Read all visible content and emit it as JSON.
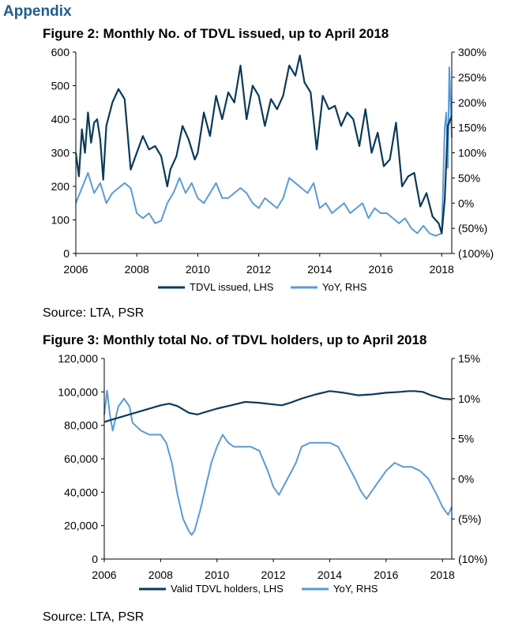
{
  "heading": "Appendix",
  "figures": [
    {
      "title": "Figure 2: Monthly No. of TDVL issued, up to April 2018",
      "source": "Source: LTA, PSR",
      "colors": {
        "left": "#0b3a5b",
        "right": "#5b9bd5"
      }
    },
    {
      "title": "Figure 3: Monthly total No. of TDVL holders, up to April 2018",
      "source": "Source: LTA, PSR",
      "colors": {
        "left": "#0b3a5b",
        "right": "#5b9bd5"
      }
    }
  ],
  "chart_data": [
    {
      "type": "line",
      "title": "Figure 2: Monthly No. of TDVL issued, up to April 2018",
      "x_range": [
        2006,
        2018.33
      ],
      "x_ticks": [
        "2006",
        "2008",
        "2010",
        "2012",
        "2014",
        "2016",
        "2018"
      ],
      "left_axis": {
        "ylim": [
          0,
          600
        ],
        "ticks": [
          "0",
          "100",
          "200",
          "300",
          "400",
          "500",
          "600"
        ]
      },
      "right_axis": {
        "ylim": [
          -100,
          300
        ],
        "ticks": [
          "(100%)",
          "(50%)",
          "0%",
          "50%",
          "100%",
          "150%",
          "200%",
          "250%",
          "300%"
        ]
      },
      "grid": false,
      "legend_position": "bottom",
      "series": [
        {
          "name": "TDVL issued, LHS",
          "axis": "left",
          "color": "#0b3a5b",
          "x": [
            2006.0,
            2006.1,
            2006.2,
            2006.3,
            2006.4,
            2006.5,
            2006.6,
            2006.7,
            2006.8,
            2006.9,
            2007.0,
            2007.2,
            2007.4,
            2007.6,
            2007.8,
            2008.0,
            2008.2,
            2008.4,
            2008.6,
            2008.8,
            2009.0,
            2009.1,
            2009.3,
            2009.5,
            2009.7,
            2009.9,
            2010.0,
            2010.2,
            2010.4,
            2010.6,
            2010.8,
            2011.0,
            2011.2,
            2011.4,
            2011.6,
            2011.8,
            2012.0,
            2012.2,
            2012.4,
            2012.6,
            2012.8,
            2013.0,
            2013.2,
            2013.35,
            2013.5,
            2013.7,
            2013.9,
            2014.1,
            2014.3,
            2014.5,
            2014.7,
            2014.9,
            2015.1,
            2015.3,
            2015.5,
            2015.7,
            2015.9,
            2016.1,
            2016.3,
            2016.5,
            2016.7,
            2016.9,
            2017.1,
            2017.3,
            2017.5,
            2017.7,
            2017.9,
            2018.0,
            2018.1,
            2018.2,
            2018.33
          ],
          "y": [
            300,
            230,
            370,
            300,
            420,
            330,
            390,
            400,
            340,
            220,
            380,
            450,
            490,
            460,
            250,
            300,
            350,
            310,
            320,
            290,
            200,
            250,
            290,
            380,
            340,
            280,
            300,
            420,
            350,
            470,
            400,
            480,
            450,
            560,
            400,
            500,
            470,
            380,
            460,
            430,
            470,
            560,
            530,
            590,
            510,
            480,
            310,
            470,
            430,
            440,
            380,
            420,
            400,
            320,
            430,
            300,
            360,
            260,
            280,
            390,
            200,
            230,
            240,
            140,
            180,
            110,
            90,
            60,
            160,
            380,
            410
          ]
        },
        {
          "name": "YoY, RHS",
          "axis": "right",
          "color": "#5b9bd5",
          "x": [
            2006.0,
            2006.2,
            2006.4,
            2006.6,
            2006.8,
            2007.0,
            2007.2,
            2007.4,
            2007.6,
            2007.8,
            2008.0,
            2008.2,
            2008.4,
            2008.6,
            2008.8,
            2009.0,
            2009.2,
            2009.4,
            2009.6,
            2009.8,
            2010.0,
            2010.2,
            2010.4,
            2010.6,
            2010.8,
            2011.0,
            2011.2,
            2011.4,
            2011.6,
            2011.8,
            2012.0,
            2012.2,
            2012.4,
            2012.6,
            2012.8,
            2013.0,
            2013.2,
            2013.4,
            2013.6,
            2013.8,
            2014.0,
            2014.2,
            2014.4,
            2014.6,
            2014.8,
            2015.0,
            2015.2,
            2015.4,
            2015.6,
            2015.8,
            2016.0,
            2016.2,
            2016.4,
            2016.6,
            2016.8,
            2017.0,
            2017.2,
            2017.4,
            2017.6,
            2017.8,
            2018.0,
            2018.1,
            2018.15,
            2018.2,
            2018.25,
            2018.33
          ],
          "y": [
            0,
            30,
            60,
            20,
            40,
            0,
            20,
            30,
            40,
            30,
            -20,
            -30,
            -20,
            -40,
            -35,
            0,
            20,
            50,
            20,
            40,
            10,
            0,
            20,
            40,
            10,
            10,
            20,
            30,
            20,
            0,
            -10,
            10,
            0,
            -10,
            10,
            50,
            40,
            30,
            20,
            40,
            -10,
            0,
            -20,
            -10,
            0,
            -20,
            -10,
            0,
            -30,
            -10,
            -20,
            -20,
            -30,
            -40,
            -30,
            -50,
            -60,
            -45,
            -60,
            -65,
            -60,
            150,
            180,
            70,
            270,
            130
          ]
        }
      ]
    },
    {
      "type": "line",
      "title": "Figure 3: Monthly total No. of TDVL holders, up to April 2018",
      "x_range": [
        2006,
        2018.33
      ],
      "x_ticks": [
        "2006",
        "2008",
        "2010",
        "2012",
        "2014",
        "2016",
        "2018"
      ],
      "left_axis": {
        "ylim": [
          0,
          120000
        ],
        "ticks": [
          "0",
          "20,000",
          "40,000",
          "60,000",
          "80,000",
          "100,000",
          "120,000"
        ]
      },
      "right_axis": {
        "ylim": [
          -10,
          15
        ],
        "ticks": [
          "(10%)",
          "(5%)",
          "0%",
          "5%",
          "10%",
          "15%"
        ]
      },
      "grid": false,
      "legend_position": "bottom",
      "series": [
        {
          "name": "Valid TDVL holders, LHS",
          "axis": "left",
          "color": "#0b3a5b",
          "x": [
            2006.0,
            2006.5,
            2007.0,
            2007.5,
            2008.0,
            2008.3,
            2008.6,
            2009.0,
            2009.3,
            2009.6,
            2010.0,
            2010.5,
            2011.0,
            2011.5,
            2012.0,
            2012.3,
            2012.6,
            2013.0,
            2013.5,
            2014.0,
            2014.5,
            2015.0,
            2015.5,
            2016.0,
            2016.5,
            2016.8,
            2017.0,
            2017.3,
            2017.6,
            2018.0,
            2018.33
          ],
          "y": [
            82000,
            84500,
            87000,
            89500,
            92000,
            93000,
            91500,
            87500,
            86500,
            88000,
            90000,
            92000,
            94000,
            93500,
            92500,
            92000,
            93500,
            96000,
            98500,
            100500,
            99500,
            98000,
            98500,
            99500,
            100000,
            100500,
            100500,
            100000,
            98000,
            96000,
            95500
          ]
        },
        {
          "name": "YoY, RHS",
          "axis": "right",
          "color": "#5b9bd5",
          "x": [
            2006.0,
            2006.1,
            2006.2,
            2006.3,
            2006.5,
            2006.7,
            2006.9,
            2007.0,
            2007.3,
            2007.6,
            2008.0,
            2008.2,
            2008.4,
            2008.6,
            2008.8,
            2009.0,
            2009.1,
            2009.2,
            2009.4,
            2009.6,
            2009.8,
            2010.0,
            2010.2,
            2010.4,
            2010.6,
            2010.9,
            2011.2,
            2011.5,
            2011.8,
            2012.0,
            2012.2,
            2012.5,
            2012.8,
            2013.0,
            2013.3,
            2013.6,
            2014.0,
            2014.3,
            2014.6,
            2014.9,
            2015.1,
            2015.3,
            2015.6,
            2016.0,
            2016.3,
            2016.6,
            2016.9,
            2017.2,
            2017.5,
            2017.8,
            2018.0,
            2018.2,
            2018.33
          ],
          "y": [
            8,
            11,
            8,
            6,
            9,
            10,
            9,
            7,
            6,
            5.5,
            5.5,
            4.5,
            2,
            -2,
            -5,
            -6.5,
            -7,
            -6.5,
            -4,
            -1,
            2,
            4,
            5.5,
            4.5,
            4,
            4,
            4,
            3.5,
            1,
            -1,
            -2,
            0,
            2,
            4,
            4.5,
            4.5,
            4.5,
            4,
            2,
            0,
            -1.5,
            -2.5,
            -1,
            1,
            2,
            1.5,
            1.5,
            1,
            0,
            -2,
            -3.5,
            -4.5,
            -3.5
          ]
        }
      ]
    }
  ]
}
